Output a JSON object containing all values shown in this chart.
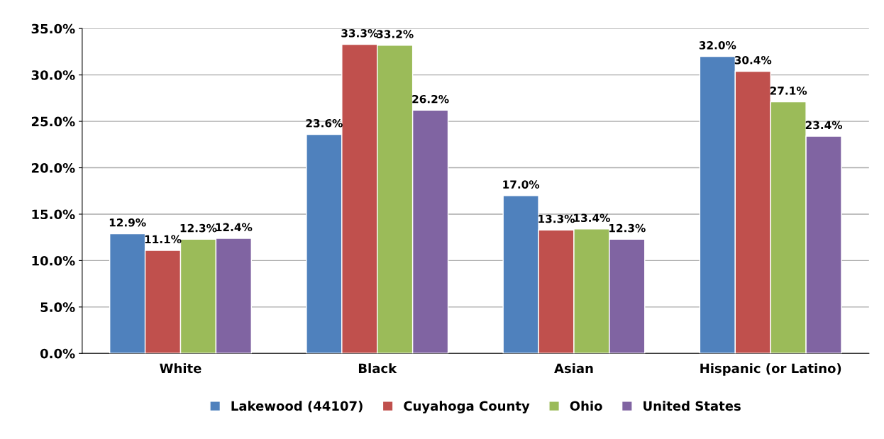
{
  "chart_data": {
    "type": "bar",
    "categories": [
      "White",
      "Black",
      "Asian",
      "Hispanic (or Latino)"
    ],
    "series": [
      {
        "name": "Lakewood (44107)",
        "color": "#4f81bd",
        "values": [
          12.9,
          23.6,
          17.0,
          32.0
        ],
        "value_labels": [
          "12.9%",
          "23.6%",
          "17.0%",
          "32.0%"
        ]
      },
      {
        "name": "Cuyahoga County",
        "color": "#c0504d",
        "values": [
          11.1,
          33.3,
          13.3,
          30.4
        ],
        "value_labels": [
          "11.1%",
          "33.3%",
          "13.3%",
          "30.4%"
        ]
      },
      {
        "name": "Ohio",
        "color": "#9bbb59",
        "values": [
          12.3,
          33.2,
          13.4,
          27.1
        ],
        "value_labels": [
          "12.3%",
          "33.2%",
          "13.4%",
          "27.1%"
        ]
      },
      {
        "name": "United States",
        "color": "#8064a2",
        "values": [
          12.4,
          26.2,
          12.3,
          23.4
        ],
        "value_labels": [
          "12.4%",
          "26.2%",
          "12.3%",
          "23.4%"
        ]
      }
    ],
    "ylim": [
      0,
      35
    ],
    "yticks": [
      {
        "value": 0,
        "label": "0.0%"
      },
      {
        "value": 5,
        "label": "5.0%"
      },
      {
        "value": 10,
        "label": "10.0%"
      },
      {
        "value": 15,
        "label": "15.0%"
      },
      {
        "value": 20,
        "label": "20.0%"
      },
      {
        "value": 25,
        "label": "25.0%"
      },
      {
        "value": 30,
        "label": "30.0%"
      },
      {
        "value": 35,
        "label": "35.0%"
      }
    ],
    "grid": "y",
    "legend": "bottom"
  }
}
